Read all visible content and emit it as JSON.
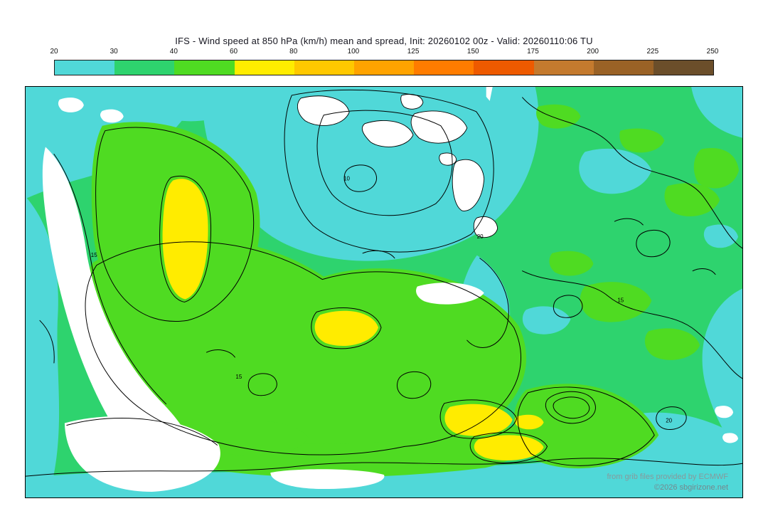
{
  "title": "IFS - Wind speed at 850 hPa (km/h) mean and spread, Init: 20260102 00z - Valid: 20260110:06 TU",
  "colorbar": {
    "ticks": [
      "20",
      "30",
      "40",
      "60",
      "80",
      "100",
      "125",
      "150",
      "175",
      "200",
      "225",
      "250"
    ],
    "colors": [
      "#50d8d8",
      "#2ed36e",
      "#4fdb22",
      "#ffec00",
      "#ffc800",
      "#ffa300",
      "#ff7c00",
      "#ee5a00",
      "#c47a2e",
      "#9a6226",
      "#6b4e2a"
    ]
  },
  "map": {
    "palette": {
      "white": "#ffffff",
      "cyan": "#50d8d8",
      "green_mid": "#2ed36e",
      "green_bright": "#4fdb22",
      "yellow": "#ffec00",
      "contour": "#000000"
    },
    "contour_labels": [
      "15",
      "20",
      "10",
      "15",
      "20",
      "15"
    ],
    "credits_line1": "from grib files provided by ECMWF",
    "credits_line2": "©2026 sbgirizone.net"
  }
}
